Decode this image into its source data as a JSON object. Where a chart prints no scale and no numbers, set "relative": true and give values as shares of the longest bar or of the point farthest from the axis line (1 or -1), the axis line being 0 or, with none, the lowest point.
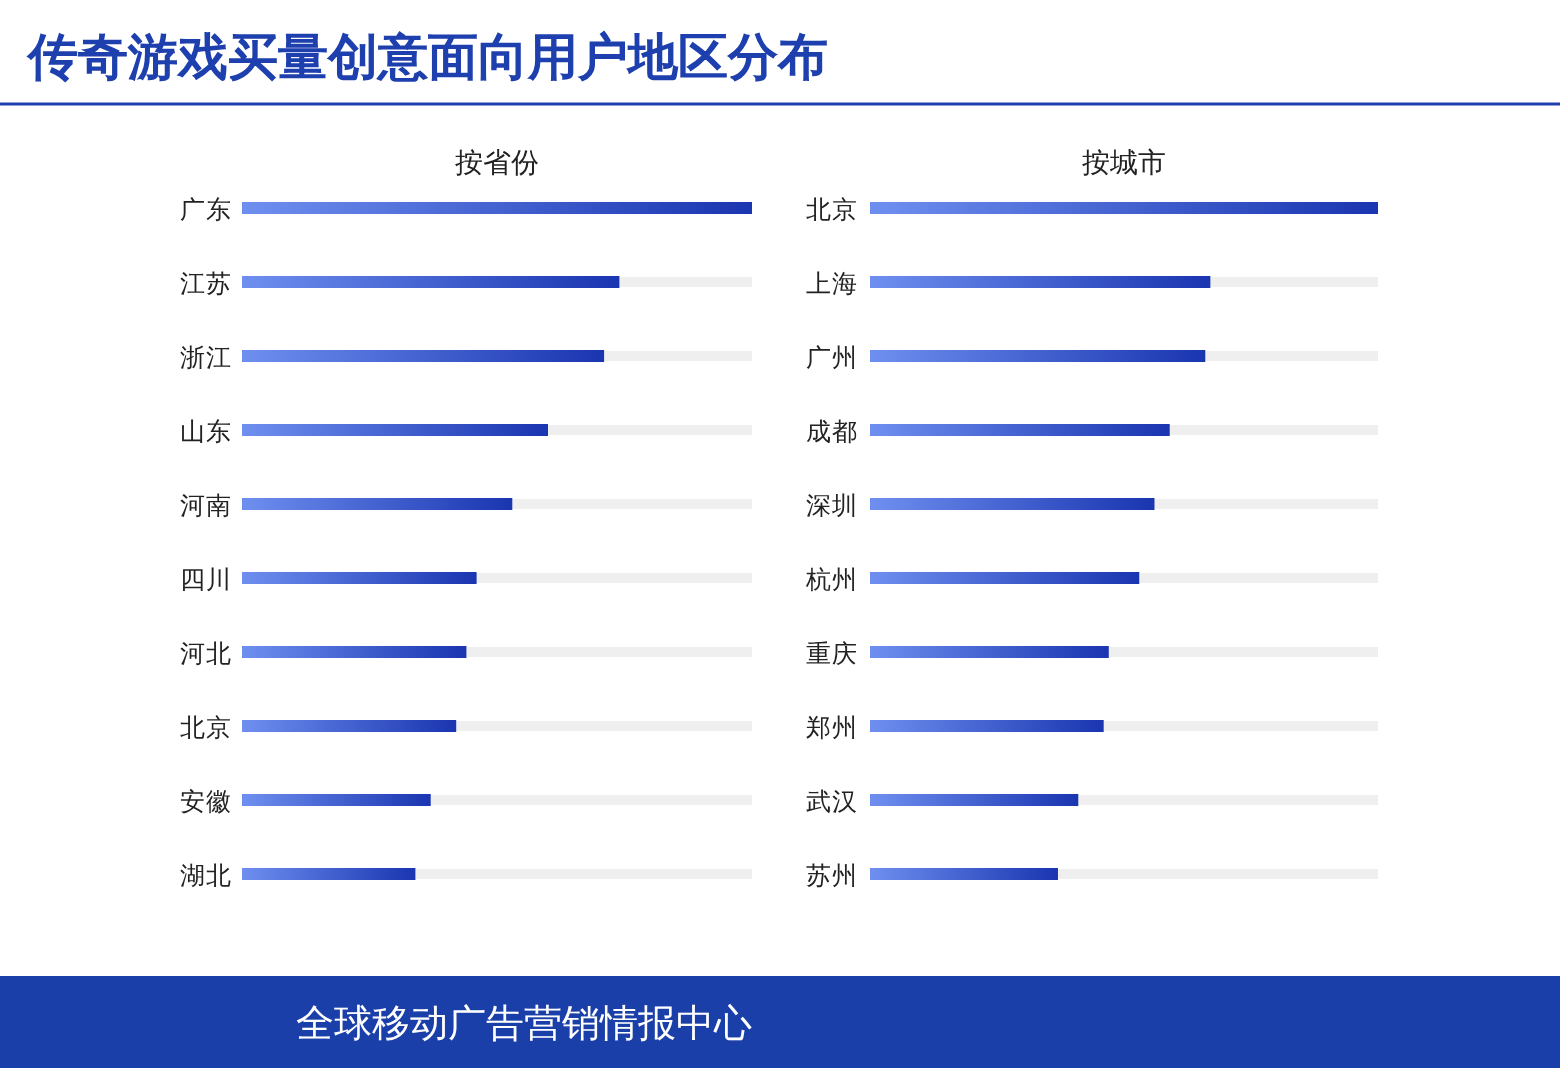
{
  "chart_data": [
    {
      "type": "bar",
      "orientation": "horizontal",
      "relative": true,
      "title": "按省份",
      "color": "#1a35b0",
      "annotations": [
        "传奇游戏买量创意面向用户地区分布",
        "全球移动广告营销情报中心"
      ],
      "categories": [
        "广东",
        "江苏",
        "浙江",
        "山东",
        "河南",
        "四川",
        "河北",
        "北京",
        "安徽",
        "湖北"
      ],
      "values": [
        1,
        0.74,
        0.71,
        0.6,
        0.53,
        0.46,
        0.44,
        0.42,
        0.37,
        0.34
      ]
    },
    {
      "type": "bar",
      "orientation": "horizontal",
      "relative": true,
      "title": "按城市",
      "color": "#1a35b0",
      "categories": [
        "北京",
        "上海",
        "广州",
        "成都",
        "深圳",
        "杭州",
        "重庆",
        "郑州",
        "武汉",
        "苏州"
      ],
      "values": [
        1,
        0.67,
        0.66,
        0.59,
        0.56,
        0.53,
        0.47,
        0.46,
        0.41,
        0.37
      ]
    }
  ]
}
